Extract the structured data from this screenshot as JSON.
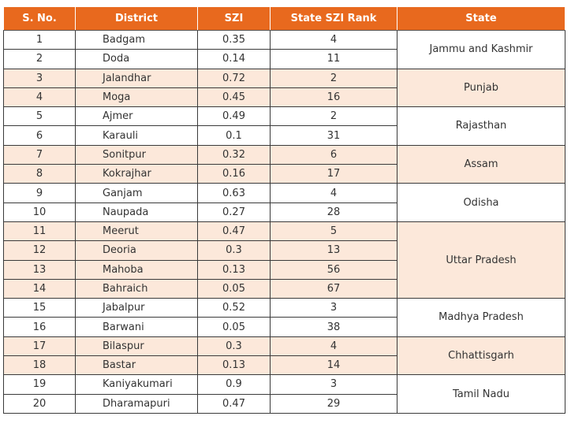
{
  "headers": [
    "S. No.",
    "District",
    "SZI",
    "State SZI Rank",
    "State"
  ],
  "rows": [
    {
      "sno": "1",
      "district": "Badgam",
      "szi": "0.35",
      "rank": "4"
    },
    {
      "sno": "2",
      "district": "Doda",
      "szi": "0.14",
      "rank": "11"
    },
    {
      "sno": "3",
      "district": "Jalandhar",
      "szi": "0.72",
      "rank": "2"
    },
    {
      "sno": "4",
      "district": "Moga",
      "szi": "0.45",
      "rank": "16"
    },
    {
      "sno": "5",
      "district": "Ajmer",
      "szi": "0.49",
      "rank": "2"
    },
    {
      "sno": "6",
      "district": "Karauli",
      "szi": "0.1",
      "rank": "31"
    },
    {
      "sno": "7",
      "district": "Sonitpur",
      "szi": "0.32",
      "rank": "6"
    },
    {
      "sno": "8",
      "district": "Kokrajhar",
      "szi": "0.16",
      "rank": "17"
    },
    {
      "sno": "9",
      "district": "Ganjam",
      "szi": "0.63",
      "rank": "4"
    },
    {
      "sno": "10",
      "district": "Naupada",
      "szi": "0.27",
      "rank": "28"
    },
    {
      "sno": "11",
      "district": "Meerut",
      "szi": "0.47",
      "rank": "5"
    },
    {
      "sno": "12",
      "district": "Deoria",
      "szi": "0.3",
      "rank": "13"
    },
    {
      "sno": "13",
      "district": "Mahoba",
      "szi": "0.13",
      "rank": "56"
    },
    {
      "sno": "14",
      "district": "Bahraich",
      "szi": "0.05",
      "rank": "67"
    },
    {
      "sno": "15",
      "district": "Jabalpur",
      "szi": "0.52",
      "rank": "3"
    },
    {
      "sno": "16",
      "district": "Barwani",
      "szi": "0.05",
      "rank": "38"
    },
    {
      "sno": "17",
      "district": "Bilaspur",
      "szi": "0.3",
      "rank": "4"
    },
    {
      "sno": "18",
      "district": "Bastar",
      "szi": "0.13",
      "rank": "14"
    },
    {
      "sno": "19",
      "district": "Kaniyakumari",
      "szi": "0.9",
      "rank": "3"
    },
    {
      "sno": "20",
      "district": "Dharamapuri",
      "szi": "0.47",
      "rank": "29"
    }
  ],
  "states": [
    {
      "name": "Jammu and Kashmir",
      "rows": 2,
      "shaded": false
    },
    {
      "name": "Punjab",
      "rows": 2,
      "shaded": true
    },
    {
      "name": "Rajasthan",
      "rows": 2,
      "shaded": false
    },
    {
      "name": "Assam",
      "rows": 2,
      "shaded": true
    },
    {
      "name": "Odisha",
      "rows": 2,
      "shaded": false
    },
    {
      "name": "Uttar Pradesh",
      "rows": 4,
      "shaded": true
    },
    {
      "name": "Madhya Pradesh",
      "rows": 2,
      "shaded": false
    },
    {
      "name": "Chhattisgarh",
      "rows": 2,
      "shaded": true
    },
    {
      "name": "Tamil Nadu",
      "rows": 2,
      "shaded": false
    }
  ],
  "colors": {
    "header_bg": "#e8691e",
    "header_text": "#ffffff",
    "shade": "#fce8da"
  }
}
